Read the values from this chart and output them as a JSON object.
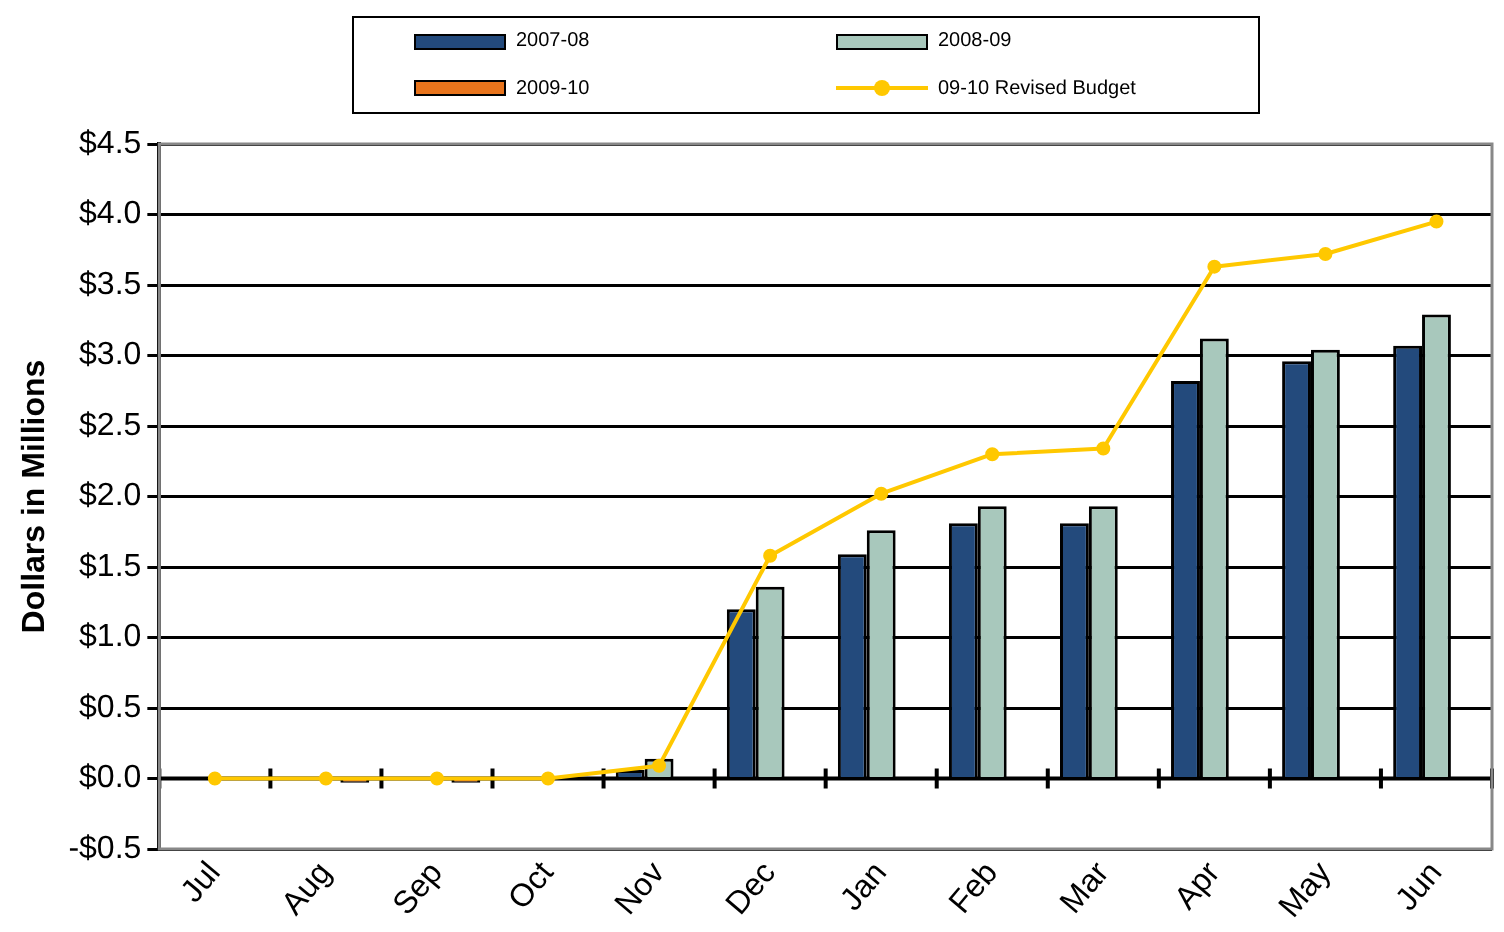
{
  "chart_data": {
    "type": "bar",
    "ylabel": "Dollars in Millions",
    "categories": [
      "Jul",
      "Aug",
      "Sep",
      "Oct",
      "Nov",
      "Dec",
      "Jan",
      "Feb",
      "Mar",
      "Apr",
      "May",
      "Jun"
    ],
    "series": [
      {
        "name": "2007-08",
        "color": "#234a7c",
        "values": [
          0,
          0,
          0,
          0,
          0.06,
          1.2,
          1.59,
          1.81,
          1.81,
          2.82,
          2.96,
          3.07
        ]
      },
      {
        "name": "2008-09",
        "color": "#a8c8bc",
        "values": [
          0,
          0,
          0,
          0,
          0.14,
          1.36,
          1.76,
          1.93,
          1.93,
          3.12,
          3.04,
          3.29
        ]
      },
      {
        "name": "2009-10",
        "color": "#e8741c",
        "values": [
          null,
          -0.03,
          -0.03,
          null,
          null,
          null,
          null,
          null,
          null,
          null,
          null,
          null
        ]
      },
      {
        "name": "09-10 Revised Budget",
        "type": "line",
        "color": "#ffc800",
        "marker": "circle",
        "values": [
          0,
          0,
          0,
          0,
          0.09,
          1.58,
          2.02,
          2.3,
          2.34,
          3.63,
          3.72,
          3.95
        ]
      }
    ],
    "ylim": [
      -0.5,
      4.5
    ],
    "yticks": [
      {
        "value": -0.5,
        "label": "-$0.5"
      },
      {
        "value": 0,
        "label": "$0.0"
      },
      {
        "value": 0.5,
        "label": "$0.5"
      },
      {
        "value": 1,
        "label": "$1.0"
      },
      {
        "value": 1.5,
        "label": "$1.5"
      },
      {
        "value": 2,
        "label": "$2.0"
      },
      {
        "value": 2.5,
        "label": "$2.5"
      },
      {
        "value": 3,
        "label": "$3.0"
      },
      {
        "value": 3.5,
        "label": "$3.5"
      },
      {
        "value": 4,
        "label": "$4.0"
      },
      {
        "value": 4.5,
        "label": "$4.5"
      }
    ],
    "grid": "y",
    "legend": "top"
  }
}
